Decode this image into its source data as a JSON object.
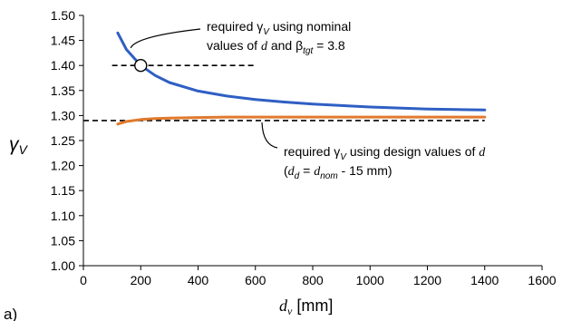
{
  "panel_label": "a)",
  "chart_data": {
    "type": "line",
    "xlabel": {
      "symbol": "d",
      "subscript": "v",
      "unit": "[mm]"
    },
    "ylabel": {
      "symbol": "γ",
      "subscript": "V"
    },
    "xlim": [
      0,
      1600
    ],
    "ylim": [
      1.0,
      1.5
    ],
    "x_ticks": [
      0,
      200,
      400,
      600,
      800,
      1000,
      1200,
      1400,
      1600
    ],
    "x_tick_labels": [
      "0",
      "200",
      "400",
      "600",
      "800",
      "1000",
      "1200",
      "1400",
      "1600"
    ],
    "y_ticks": [
      1.0,
      1.05,
      1.1,
      1.15,
      1.2,
      1.25,
      1.3,
      1.35,
      1.4,
      1.45,
      1.5
    ],
    "y_tick_labels": [
      "1.00",
      "1.05",
      "1.10",
      "1.15",
      "1.20",
      "1.25",
      "1.30",
      "1.35",
      "1.40",
      "1.45",
      "1.50"
    ],
    "grid": false,
    "series": [
      {
        "color": "#2F5FC4",
        "x": [
          120,
          150,
          200,
          250,
          300,
          400,
          500,
          600,
          700,
          800,
          900,
          1000,
          1100,
          1200,
          1300,
          1400
        ],
        "y": [
          1.465,
          1.432,
          1.4,
          1.38,
          1.366,
          1.349,
          1.339,
          1.332,
          1.327,
          1.323,
          1.32,
          1.317,
          1.315,
          1.313,
          1.312,
          1.311
        ]
      },
      {
        "color": "#E07A2E",
        "x": [
          120,
          150,
          200,
          250,
          300,
          400,
          500,
          600,
          800,
          1000,
          1200,
          1400
        ],
        "y": [
          1.283,
          1.288,
          1.292,
          1.294,
          1.295,
          1.296,
          1.297,
          1.297,
          1.297,
          1.297,
          1.297,
          1.297
        ]
      }
    ],
    "reference_lines": [
      {
        "y": 1.4,
        "x": [
          100,
          600
        ],
        "style": "dashed"
      },
      {
        "y": 1.29,
        "x": [
          0,
          1400
        ],
        "style": "dashed"
      }
    ],
    "marker": {
      "x": 200,
      "y": 1.4,
      "shape": "open-circle"
    },
    "annotations": [
      {
        "id": "nominal",
        "line1": "required γ",
        "line1_sub": "V",
        "line1_tail": " using nominal",
        "line2_pre": "values of ",
        "line2_var": "d",
        "line2_mid": " and β",
        "line2_sub": "tgt",
        "line2_tail": " = 3.8"
      },
      {
        "id": "design",
        "line1": "required γ",
        "line1_sub": "V",
        "line1_tail": " using  design values of ",
        "line1_var": "d",
        "line2_open": "(",
        "line2_var": "d",
        "line2_sub": "d",
        "line2_eq": " = ",
        "line2_var2": "d",
        "line2_sub2": "nom",
        "line2_tail": " - 15 mm)"
      }
    ]
  }
}
